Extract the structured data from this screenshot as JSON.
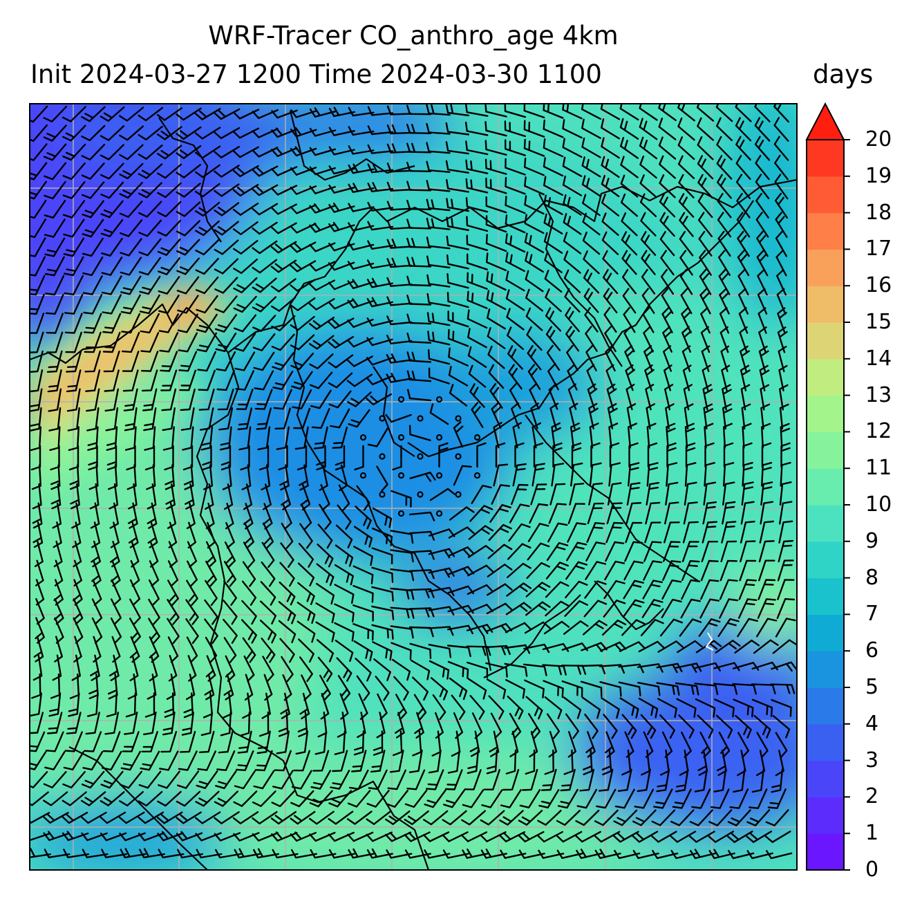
{
  "title": {
    "line1": "WRF-Tracer CO_anthro_age 4km",
    "line2": "Init 2024-03-27 1200 Time 2024-03-30 1100"
  },
  "colorbar": {
    "unit": "days",
    "extend": "max",
    "ticks": [
      "0",
      "1",
      "2",
      "3",
      "4",
      "5",
      "6",
      "7",
      "8",
      "9",
      "10",
      "11",
      "12",
      "13",
      "14",
      "15",
      "16",
      "17",
      "18",
      "19",
      "20"
    ],
    "colors": [
      "#6a16ff",
      "#5c2cfd",
      "#4b45f9",
      "#3a60f2",
      "#2a7aea",
      "#1a94df",
      "#10abd4",
      "#19c2cc",
      "#2fd4c7",
      "#4ce2c0",
      "#68edaf",
      "#86f39c",
      "#a3f48a",
      "#c1ec80",
      "#dcd475",
      "#efbc68",
      "#f9a05a",
      "#fe7f48",
      "#ff5c35",
      "#ff3822"
    ],
    "over_color": "#ff1e10"
  },
  "map": {
    "gridlines": "on",
    "field": "CO_anthro_age",
    "barbs": "wind barbs",
    "circulation": "cyclonic low centered near map center",
    "high_age_region": "northwest plume (13-16 days)",
    "low_age_region": "northwest corner (1-2 days)"
  }
}
